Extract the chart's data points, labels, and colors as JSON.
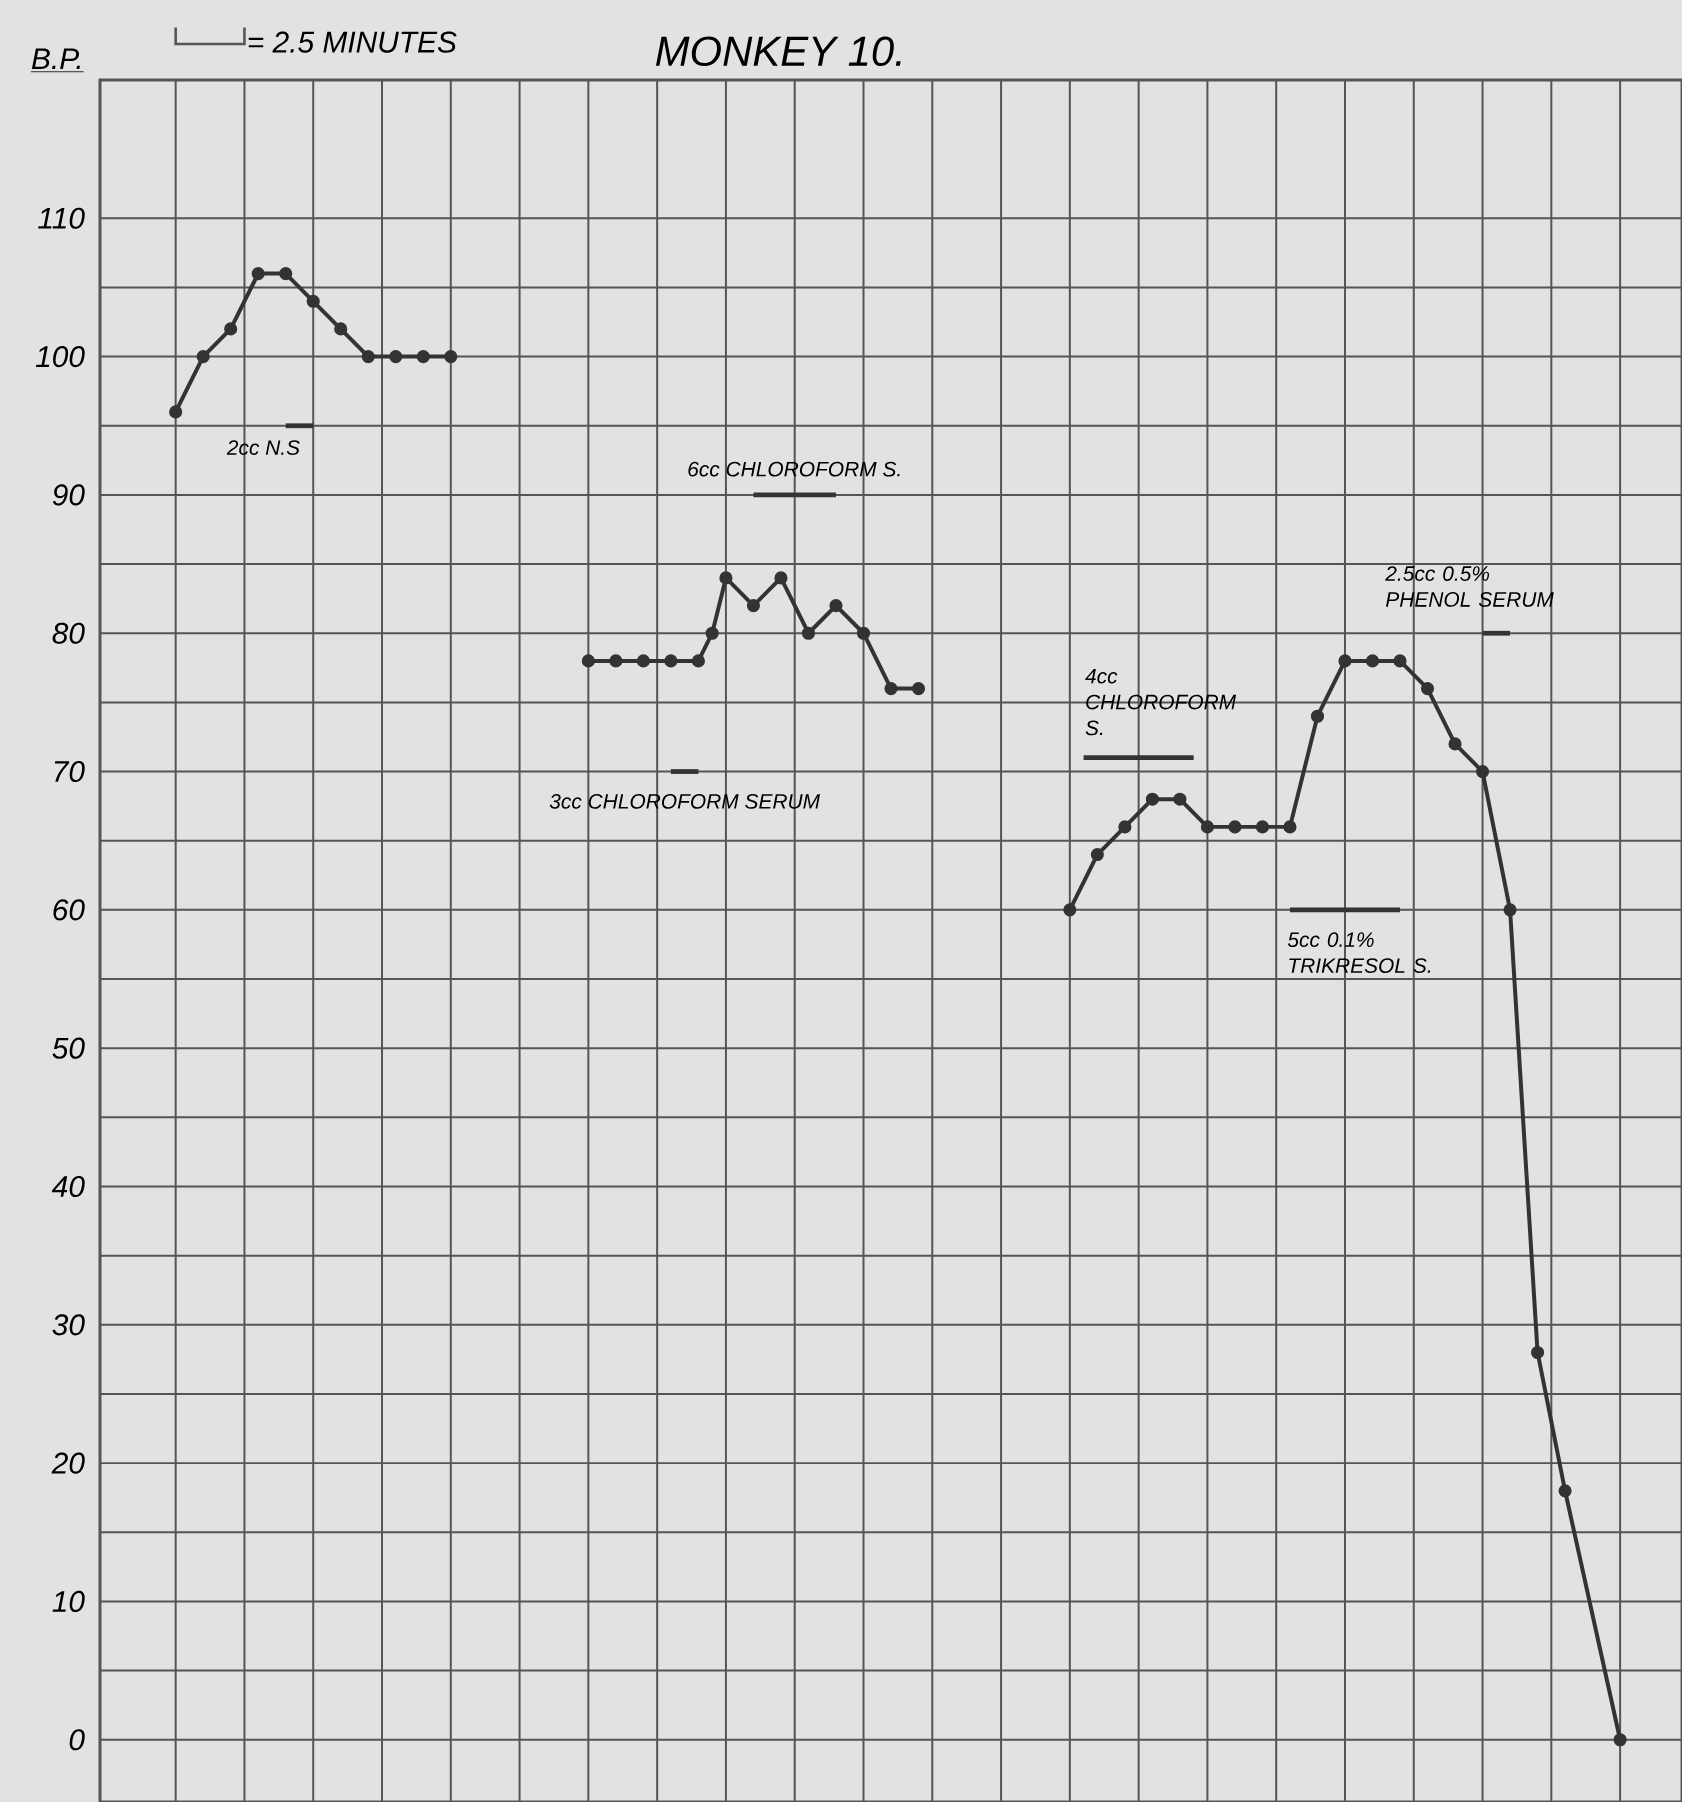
{
  "chart_data": {
    "type": "line",
    "title": "MONKEY 10.",
    "ylabel": "B.P.",
    "categories": [
      null,
      null,
      null,
      null,
      null,
      null,
      null,
      null,
      null,
      null,
      null,
      null,
      null,
      null,
      null,
      null,
      null,
      null,
      null,
      null,
      null,
      null,
      null,
      null,
      null,
      null,
      null,
      null,
      null,
      null,
      null,
      null,
      null,
      null,
      null,
      null,
      null,
      null,
      null,
      null,
      null,
      null,
      null,
      null,
      null,
      null,
      null,
      null,
      null,
      null,
      null,
      null,
      null,
      null,
      null,
      null,
      null,
      null,
      null,
      null,
      null,
      null,
      null,
      null,
      null,
      null,
      null,
      null,
      null,
      null,
      null,
      null,
      null,
      null,
      null,
      null,
      null,
      null,
      null,
      null,
      null,
      null,
      null,
      null,
      null,
      null,
      null,
      null,
      null,
      null,
      null,
      null,
      null,
      null,
      null,
      null,
      null,
      null,
      null,
      null,
      null,
      null,
      null,
      null,
      null,
      null,
      null,
      null,
      null,
      null,
      null,
      null,
      null,
      null,
      null
    ],
    "ylim": [
      -4.5,
      120
    ],
    "yticks": [
      0,
      10,
      20,
      30,
      40,
      50,
      60,
      70,
      80,
      90,
      100,
      110
    ],
    "tick_labels": "y",
    "grid": true,
    "marker": "circle",
    "line_style": "solid",
    "series": [
      {
        "color": "#333333",
        "values": [
          null,
          null,
          null,
          null,
          null,
          96,
          null,
          100,
          null,
          102,
          null,
          106,
          null,
          106,
          null,
          104,
          null,
          102,
          null,
          100,
          null,
          100,
          null,
          100,
          null,
          100,
          null,
          null,
          null,
          null,
          null,
          null,
          null,
          null,
          null,
          null,
          null,
          null,
          null,
          null,
          null,
          null,
          null,
          null,
          null,
          null,
          null,
          null,
          null,
          null,
          null,
          null,
          null,
          null,
          null,
          null,
          null,
          null,
          null,
          null,
          null,
          null,
          null,
          null,
          null,
          null,
          null,
          null,
          null,
          null,
          null,
          null,
          null,
          null,
          null,
          null,
          null,
          null,
          null,
          null,
          null,
          null,
          null,
          null,
          null,
          null,
          null,
          null,
          null,
          null,
          null,
          null,
          null,
          null,
          null,
          null,
          null,
          null,
          null,
          null,
          null,
          null,
          null,
          null,
          null,
          null,
          null,
          null,
          null,
          null,
          null,
          null,
          null,
          null,
          null
        ]
      },
      {
        "color": "#333333",
        "values": [
          null,
          null,
          null,
          null,
          null,
          null,
          null,
          null,
          null,
          null,
          null,
          null,
          null,
          null,
          null,
          null,
          null,
          null,
          null,
          null,
          null,
          null,
          null,
          null,
          null,
          null,
          null,
          null,
          null,
          null,
          null,
          null,
          null,
          null,
          null,
          78,
          null,
          78,
          null,
          78,
          null,
          78,
          null,
          78,
          80,
          84,
          null,
          82,
          null,
          84,
          null,
          80,
          null,
          82,
          null,
          80,
          null,
          76,
          null,
          76,
          null,
          null,
          null,
          null,
          null,
          null,
          null,
          null,
          null,
          null,
          null,
          null,
          null,
          null,
          null,
          null,
          null,
          null,
          null,
          null,
          null,
          null,
          null,
          null,
          null,
          null,
          null,
          null,
          null,
          null,
          null,
          null,
          null,
          null,
          null,
          null,
          null,
          null,
          null,
          null,
          null,
          null,
          null,
          null,
          null,
          null,
          null,
          null,
          null,
          null,
          null,
          null,
          null,
          null,
          null
        ]
      },
      {
        "color": "#333333",
        "values": [
          null,
          null,
          null,
          null,
          null,
          null,
          null,
          null,
          null,
          null,
          null,
          null,
          null,
          null,
          null,
          null,
          null,
          null,
          null,
          null,
          null,
          null,
          null,
          null,
          null,
          null,
          null,
          null,
          null,
          null,
          null,
          null,
          null,
          null,
          null,
          null,
          null,
          null,
          null,
          null,
          null,
          null,
          null,
          null,
          null,
          null,
          null,
          null,
          null,
          null,
          null,
          null,
          null,
          null,
          null,
          null,
          null,
          null,
          null,
          null,
          null,
          null,
          null,
          null,
          null,
          null,
          null,
          null,
          null,
          null,
          60,
          null,
          64,
          null,
          66,
          null,
          68,
          null,
          68,
          null,
          66,
          null,
          66,
          null,
          66,
          null,
          66,
          null,
          74,
          null,
          78,
          null,
          78,
          null,
          78,
          null,
          76,
          null,
          72,
          null,
          70,
          null,
          60,
          null,
          28,
          null,
          18,
          null,
          null,
          null,
          0,
          null,
          null,
          null,
          null
        ]
      },
      {
        "name": "2cc N.S",
        "color": "#333333",
        "marker": "none",
        "values": [
          null,
          null,
          null,
          null,
          null,
          null,
          null,
          null,
          null,
          null,
          null,
          null,
          null,
          95,
          null,
          95,
          null,
          null,
          null,
          null,
          null,
          null,
          null,
          null,
          null,
          null,
          null,
          null,
          null,
          null,
          null,
          null,
          null,
          null,
          null,
          null,
          null,
          null,
          null,
          null,
          null,
          null,
          null,
          null,
          null,
          null,
          null,
          null,
          null,
          null,
          null,
          null,
          null,
          null,
          null,
          null,
          null,
          null,
          null,
          null,
          null,
          null,
          null,
          null,
          null,
          null,
          null,
          null,
          null,
          null,
          null,
          null,
          null,
          null,
          null,
          null,
          null,
          null,
          null,
          null,
          null,
          null,
          null,
          null,
          null,
          null,
          null,
          null,
          null,
          null,
          null,
          null,
          null,
          null,
          null,
          null,
          null,
          null,
          null,
          null,
          null,
          null,
          null,
          null,
          null,
          null,
          null,
          null,
          null,
          null,
          null,
          null,
          null,
          null,
          null
        ]
      },
      {
        "name": "6cc CHLOROFORM S.",
        "color": "#333333",
        "marker": "none",
        "values": [
          null,
          null,
          null,
          null,
          null,
          null,
          null,
          null,
          null,
          null,
          null,
          null,
          null,
          null,
          null,
          null,
          null,
          null,
          null,
          null,
          null,
          null,
          null,
          null,
          null,
          null,
          null,
          null,
          null,
          null,
          null,
          null,
          null,
          null,
          null,
          null,
          null,
          null,
          null,
          null,
          null,
          null,
          null,
          null,
          null,
          null,
          null,
          90,
          null,
          null,
          null,
          null,
          null,
          90,
          null,
          null,
          null,
          null,
          null,
          null,
          null,
          null,
          null,
          null,
          null,
          null,
          null,
          null,
          null,
          null,
          null,
          null,
          null,
          null,
          null,
          null,
          null,
          null,
          null,
          null,
          null,
          null,
          null,
          null,
          null,
          null,
          null,
          null,
          null,
          null,
          null,
          null,
          null,
          null,
          null,
          null,
          null,
          null,
          null,
          null,
          null,
          null,
          null,
          null,
          null,
          null,
          null,
          null,
          null,
          null,
          null,
          null,
          null,
          null,
          null
        ]
      },
      {
        "name": "3cc CHLOROFORM SERUM",
        "color": "#333333",
        "marker": "none",
        "values": [
          null,
          null,
          null,
          null,
          null,
          null,
          null,
          null,
          null,
          null,
          null,
          null,
          null,
          null,
          null,
          null,
          null,
          null,
          null,
          null,
          null,
          null,
          null,
          null,
          null,
          null,
          null,
          null,
          null,
          null,
          null,
          null,
          null,
          null,
          null,
          null,
          null,
          null,
          null,
          null,
          null,
          70,
          null,
          70,
          null,
          null,
          null,
          null,
          null,
          null,
          null,
          null,
          null,
          null,
          null,
          null,
          null,
          null,
          null,
          null,
          null,
          null,
          null,
          null,
          null,
          null,
          null,
          null,
          null,
          null,
          null,
          null,
          null,
          null,
          null,
          null,
          null,
          null,
          null,
          null,
          null,
          null,
          null,
          null,
          null,
          null,
          null,
          null,
          null,
          null,
          null,
          null,
          null,
          null,
          null,
          null,
          null,
          null,
          null,
          null,
          null,
          null,
          null,
          null,
          null,
          null,
          null,
          null,
          null,
          null,
          null,
          null,
          null,
          null,
          null
        ]
      },
      {
        "name": "4cc CHLOROFORM S.",
        "color": "#333333",
        "marker": "none",
        "values": [
          null,
          null,
          null,
          null,
          null,
          null,
          null,
          null,
          null,
          null,
          null,
          null,
          null,
          null,
          null,
          null,
          null,
          null,
          null,
          null,
          null,
          null,
          null,
          null,
          null,
          null,
          null,
          null,
          null,
          null,
          null,
          null,
          null,
          null,
          null,
          null,
          null,
          null,
          null,
          null,
          null,
          null,
          null,
          null,
          null,
          null,
          null,
          null,
          null,
          null,
          null,
          null,
          null,
          null,
          null,
          null,
          null,
          null,
          null,
          null,
          null,
          null,
          null,
          null,
          null,
          null,
          null,
          null,
          null,
          null,
          null,
          71,
          null,
          null,
          null,
          null,
          null,
          null,
          null,
          71,
          null,
          null,
          null,
          null,
          null,
          null,
          null,
          null,
          null,
          null,
          null,
          null,
          null,
          null,
          null,
          null,
          null,
          null,
          null,
          null,
          null,
          null,
          null,
          null,
          null,
          null,
          null,
          null,
          null,
          null,
          null,
          null,
          null,
          null,
          null
        ]
      },
      {
        "name": "5cc 0.1% TRIKRESOL S.",
        "color": "#333333",
        "marker": "none",
        "values": [
          null,
          null,
          null,
          null,
          null,
          null,
          null,
          null,
          null,
          null,
          null,
          null,
          null,
          null,
          null,
          null,
          null,
          null,
          null,
          null,
          null,
          null,
          null,
          null,
          null,
          null,
          null,
          null,
          null,
          null,
          null,
          null,
          null,
          null,
          null,
          null,
          null,
          null,
          null,
          null,
          null,
          null,
          null,
          null,
          null,
          null,
          null,
          null,
          null,
          null,
          null,
          null,
          null,
          null,
          null,
          null,
          null,
          null,
          null,
          null,
          null,
          null,
          null,
          null,
          null,
          null,
          null,
          null,
          null,
          null,
          null,
          null,
          null,
          null,
          null,
          null,
          null,
          null,
          null,
          null,
          null,
          null,
          null,
          null,
          null,
          null,
          60,
          null,
          null,
          null,
          null,
          null,
          null,
          null,
          60,
          null,
          null,
          null,
          null,
          null,
          null,
          null,
          null,
          null,
          null,
          null,
          null,
          null,
          null,
          null,
          null,
          null,
          null,
          null,
          null
        ]
      },
      {
        "name": "2.5cc 0.5% PHENOL SERUM",
        "color": "#333333",
        "marker": "none",
        "values": [
          null,
          null,
          null,
          null,
          null,
          null,
          null,
          null,
          null,
          null,
          null,
          null,
          null,
          null,
          null,
          null,
          null,
          null,
          null,
          null,
          null,
          null,
          null,
          null,
          null,
          null,
          null,
          null,
          null,
          null,
          null,
          null,
          null,
          null,
          null,
          null,
          null,
          null,
          null,
          null,
          null,
          null,
          null,
          null,
          null,
          null,
          null,
          null,
          null,
          null,
          null,
          null,
          null,
          null,
          null,
          null,
          null,
          null,
          null,
          null,
          null,
          null,
          null,
          null,
          null,
          null,
          null,
          null,
          null,
          null,
          null,
          null,
          null,
          null,
          null,
          null,
          null,
          null,
          null,
          null,
          null,
          null,
          null,
          null,
          null,
          null,
          null,
          null,
          null,
          null,
          null,
          null,
          null,
          null,
          null,
          null,
          null,
          null,
          null,
          null,
          80,
          null,
          80,
          null,
          null,
          null,
          null,
          null,
          null,
          null,
          null,
          null,
          null,
          null,
          null
        ]
      }
    ],
    "annotations": [
      "= 2.5 MINUTES"
    ]
  }
}
